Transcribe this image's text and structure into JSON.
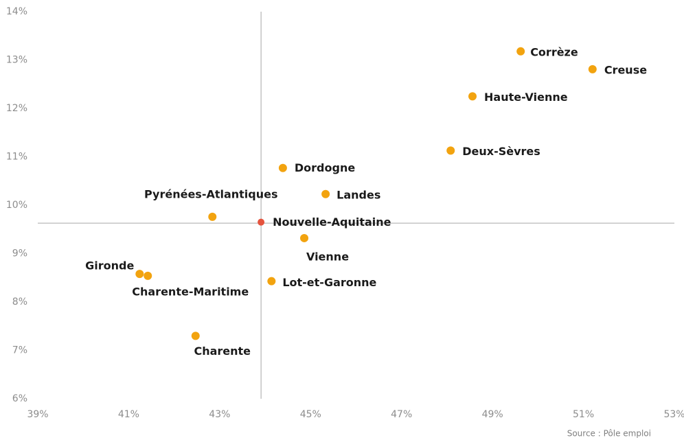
{
  "chart_data": {
    "type": "scatter",
    "series": [
      {
        "color": "#f2a30f",
        "labels": [
          "Corrèze",
          "Creuse",
          "Haute-Vienne",
          "Deux-Sèvres",
          "Dordogne",
          "Landes",
          "Pyrénées-Atlantiques",
          "Vienne",
          "Gironde",
          "Charente-Maritime",
          "Lot-et-Garonne",
          "Charente"
        ],
        "x": [
          49.62,
          51.2,
          48.56,
          48.08,
          44.39,
          45.33,
          42.84,
          44.86,
          41.24,
          41.42,
          44.14,
          42.47
        ],
        "values": [
          13.18,
          12.81,
          12.25,
          11.13,
          10.77,
          10.23,
          9.76,
          9.32,
          8.58,
          8.54,
          8.43,
          7.3
        ]
      },
      {
        "color": "#e5533d",
        "labels": [
          "Nouvelle-Aquitaine"
        ],
        "x": [
          43.91
        ],
        "values": [
          9.65
        ]
      }
    ],
    "reference_lines": {
      "x": 43.91,
      "y": 9.63
    },
    "xlim": [
      39,
      53
    ],
    "xticks": [
      {
        "value": 39,
        "label": "39%"
      },
      {
        "value": 41,
        "label": "41%"
      },
      {
        "value": 43,
        "label": "43%"
      },
      {
        "value": 45,
        "label": "45%"
      },
      {
        "value": 47,
        "label": "47%"
      },
      {
        "value": 49,
        "label": "49%"
      },
      {
        "value": 51,
        "label": "51%"
      },
      {
        "value": 53,
        "label": "53%"
      }
    ],
    "ylim": [
      6,
      14
    ],
    "yticks": [
      {
        "value": 6,
        "label": "6%"
      },
      {
        "value": 7,
        "label": "7%"
      },
      {
        "value": 8,
        "label": "8%"
      },
      {
        "value": 9,
        "label": "9%"
      },
      {
        "value": 10,
        "label": "10%"
      },
      {
        "value": 11,
        "label": "11%"
      },
      {
        "value": 12,
        "label": "12%"
      },
      {
        "value": 13,
        "label": "13%"
      },
      {
        "value": 14,
        "label": "14%"
      }
    ],
    "source": "Source : Pôle emploi"
  }
}
